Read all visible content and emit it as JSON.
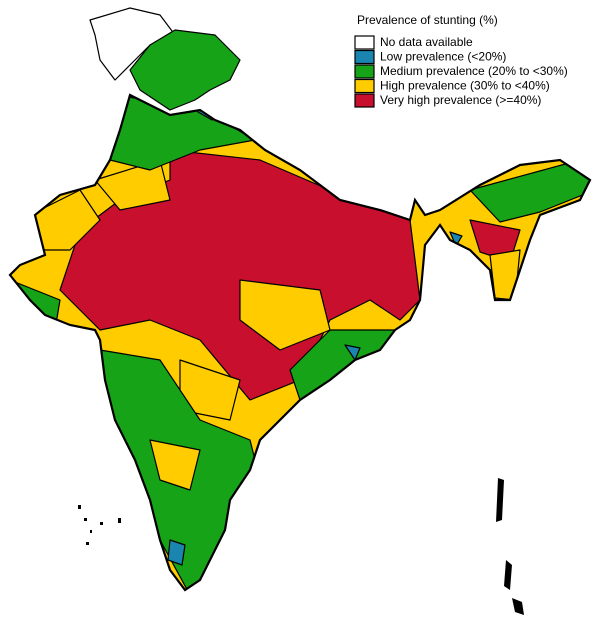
{
  "legend": {
    "title": "Prevalence of stunting (%)",
    "items": [
      {
        "label": "No data available",
        "color": "#ffffff"
      },
      {
        "label": "Low prevalence (<20%)",
        "color": "#1a86b0"
      },
      {
        "label": "Medium prevalence (20% to <30%)",
        "color": "#17a317"
      },
      {
        "label": "High prevalence (30% to <40%)",
        "color": "#ffcc00"
      },
      {
        "label": "Very high prevalence (>=40%)",
        "color": "#c8102e"
      }
    ]
  }
}
